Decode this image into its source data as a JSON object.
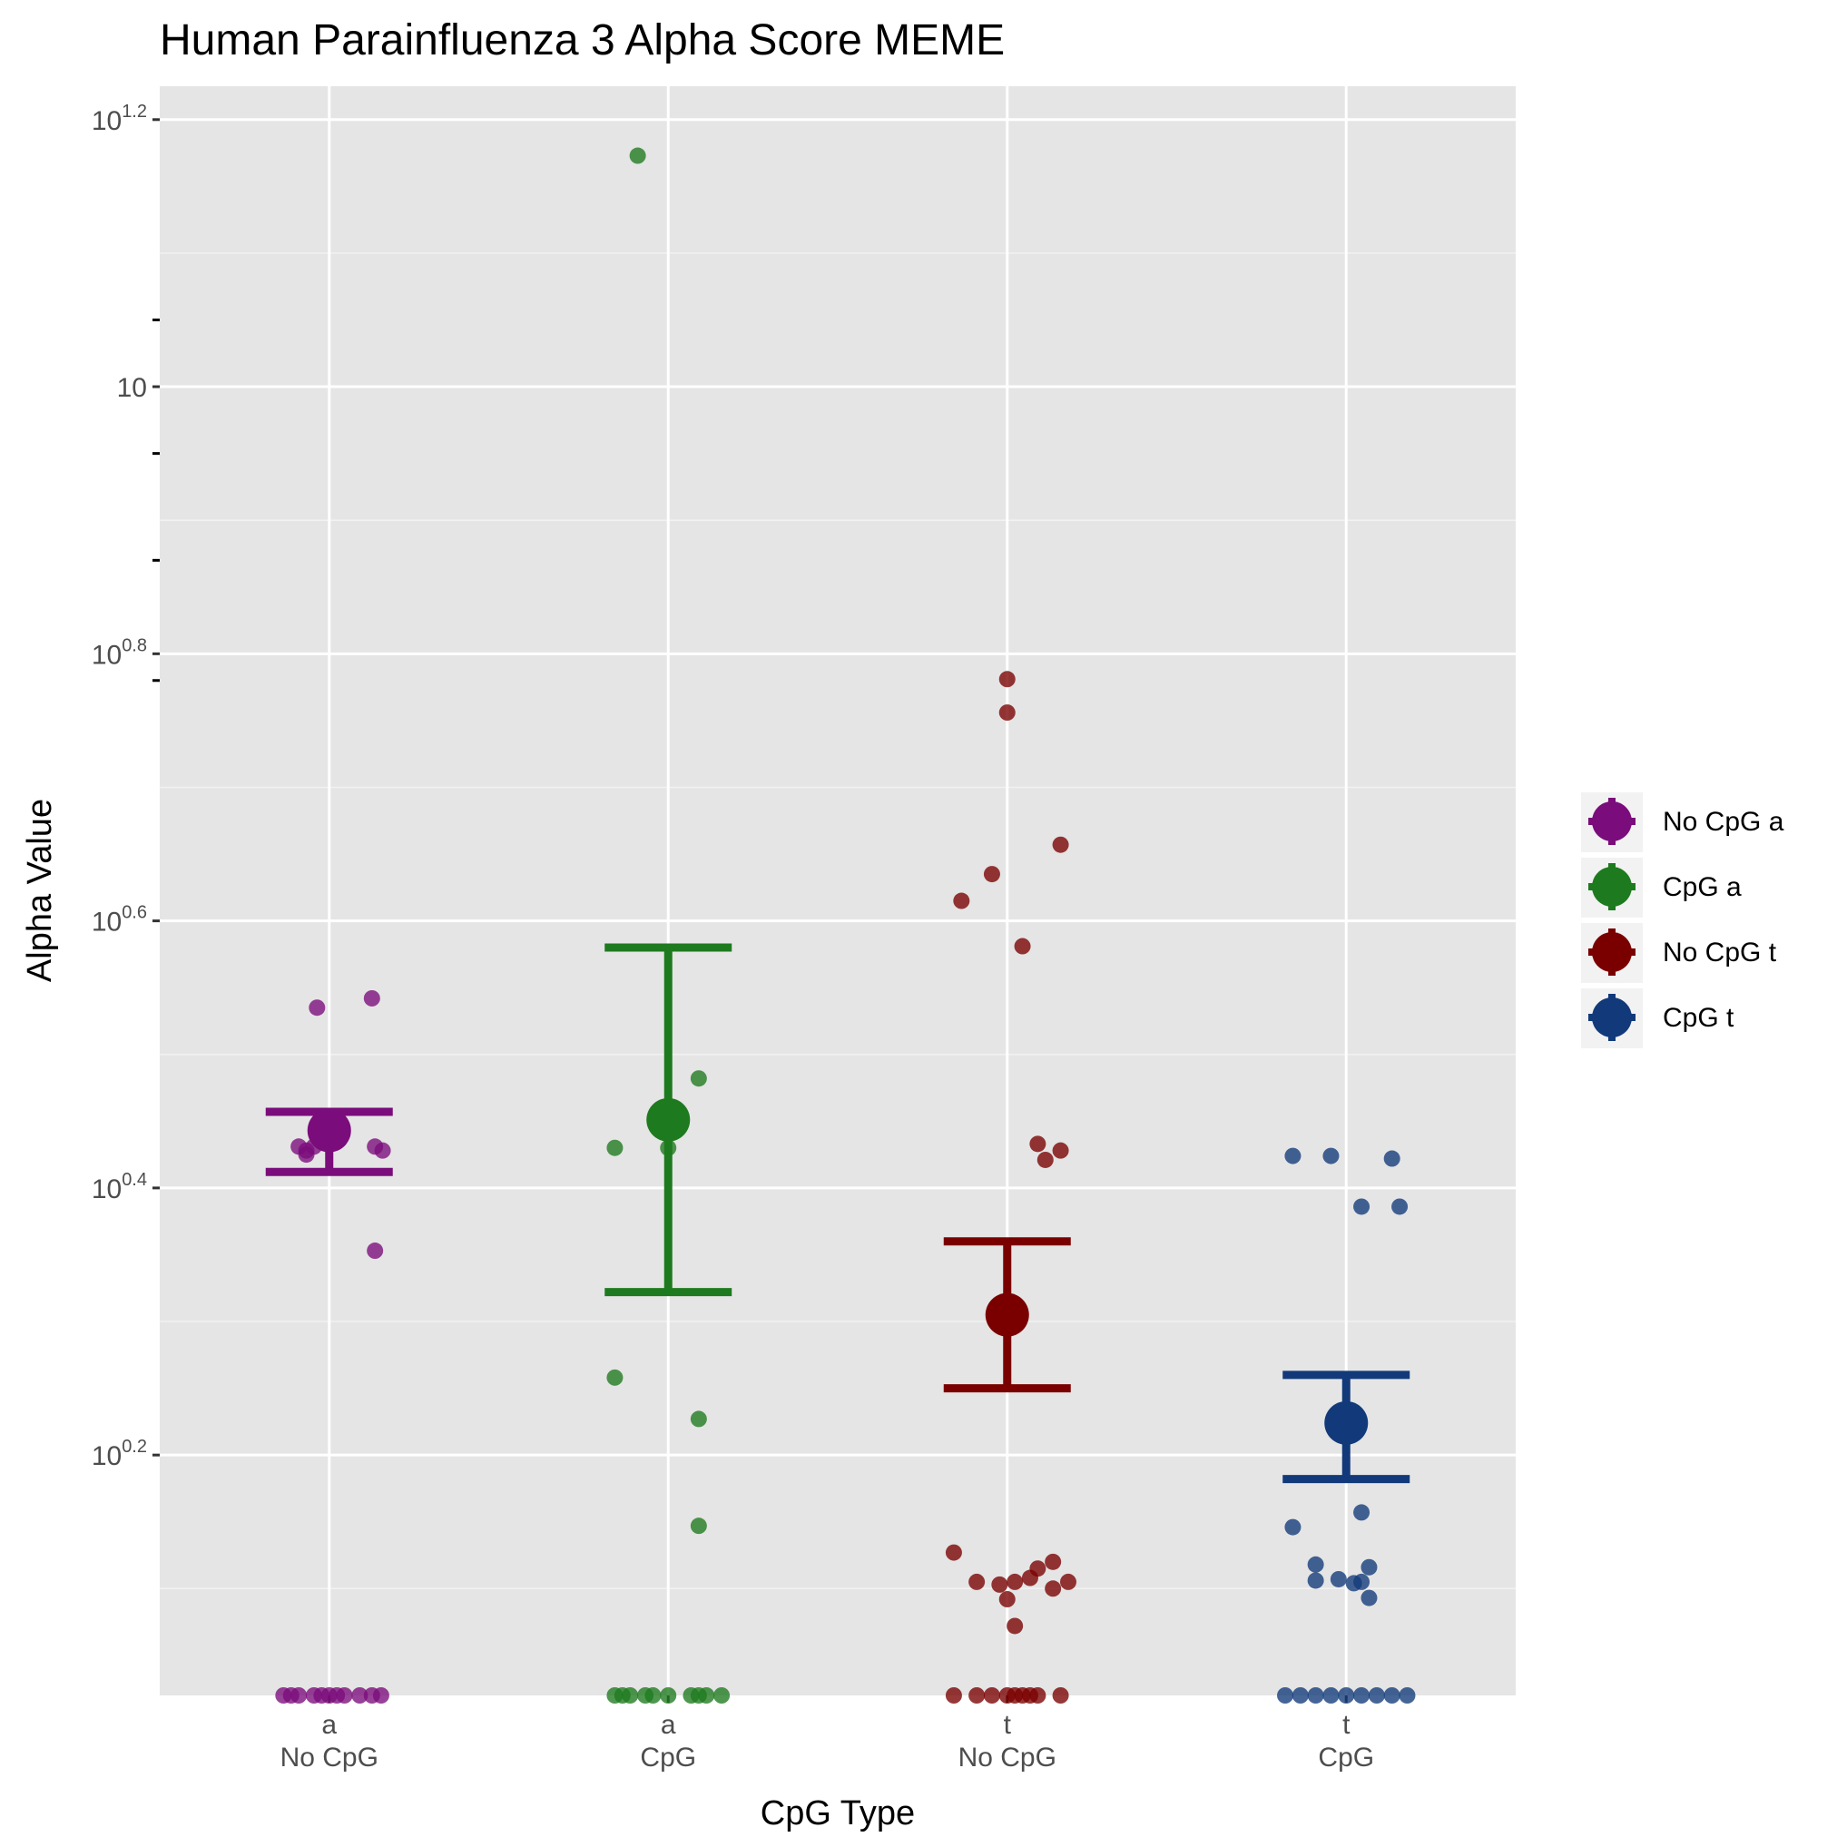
{
  "chart_data": {
    "type": "scatter",
    "title": "Human Parainfluenza 3 Alpha Score MEME",
    "xlabel": "CpG Type",
    "ylabel": "Alpha Value",
    "y_scale": "log10",
    "y_exponent_range": [
      0.02,
      1.225
    ],
    "y_ticks": [
      {
        "base": "10",
        "exp": "0.2",
        "value": 0.2
      },
      {
        "base": "10",
        "exp": "0.4",
        "value": 0.4
      },
      {
        "base": "10",
        "exp": "0.6",
        "value": 0.6
      },
      {
        "base": "10",
        "exp": "0.8",
        "value": 0.8
      },
      {
        "base": "10",
        "exp": "",
        "value": 1.0,
        "label": "10"
      },
      {
        "base": "10",
        "exp": "1.2",
        "value": 1.2
      }
    ],
    "categories": [
      {
        "top": "a",
        "bottom": "No CpG"
      },
      {
        "top": "a",
        "bottom": "CpG"
      },
      {
        "top": "t",
        "bottom": "No CpG"
      },
      {
        "top": "t",
        "bottom": "CpG"
      }
    ],
    "series": [
      {
        "name": "No CpG a",
        "color": "#7b0c7b",
        "category_index": 0,
        "mean_exp": 0.443,
        "err_low_exp": 0.412,
        "err_high_exp": 0.457,
        "points": [
          [
            -0.2,
            0.431
          ],
          [
            -0.15,
            0.428
          ],
          [
            -0.1,
            0.431
          ],
          [
            -0.15,
            0.425
          ],
          [
            0.3,
            0.431
          ],
          [
            0.35,
            0.428
          ],
          [
            -0.08,
            0.535
          ],
          [
            0.28,
            0.542
          ],
          [
            0.3,
            0.353
          ],
          [
            -0.3,
            0.02
          ],
          [
            -0.25,
            0.02
          ],
          [
            -0.2,
            0.02
          ],
          [
            -0.1,
            0.02
          ],
          [
            -0.05,
            0.02
          ],
          [
            0.0,
            0.02
          ],
          [
            0.05,
            0.02
          ],
          [
            0.1,
            0.02
          ],
          [
            0.2,
            0.02
          ],
          [
            0.28,
            0.02
          ],
          [
            0.34,
            0.02
          ]
        ]
      },
      {
        "name": "CpG a",
        "color": "#1e7a1e",
        "category_index": 1,
        "mean_exp": 0.451,
        "err_low_exp": 0.322,
        "err_high_exp": 0.58,
        "points": [
          [
            -0.2,
            1.173
          ],
          [
            0.2,
            0.482
          ],
          [
            -0.35,
            0.43
          ],
          [
            0.0,
            0.43
          ],
          [
            -0.35,
            0.258
          ],
          [
            0.2,
            0.227
          ],
          [
            0.2,
            0.147
          ],
          [
            -0.35,
            0.02
          ],
          [
            -0.3,
            0.02
          ],
          [
            -0.25,
            0.02
          ],
          [
            -0.15,
            0.02
          ],
          [
            -0.1,
            0.02
          ],
          [
            0.0,
            0.02
          ],
          [
            0.15,
            0.02
          ],
          [
            0.2,
            0.02
          ],
          [
            0.25,
            0.02
          ],
          [
            0.35,
            0.02
          ]
        ]
      },
      {
        "name": "No CpG t",
        "color": "#7a0000",
        "category_index": 2,
        "mean_exp": 0.305,
        "err_low_exp": 0.25,
        "err_high_exp": 0.36,
        "points": [
          [
            0.0,
            0.781
          ],
          [
            0.0,
            0.756
          ],
          [
            0.35,
            0.657
          ],
          [
            -0.1,
            0.635
          ],
          [
            -0.3,
            0.615
          ],
          [
            0.1,
            0.581
          ],
          [
            0.2,
            0.433
          ],
          [
            0.35,
            0.428
          ],
          [
            0.25,
            0.421
          ],
          [
            -0.35,
            0.127
          ],
          [
            -0.2,
            0.105
          ],
          [
            -0.05,
            0.103
          ],
          [
            0.05,
            0.105
          ],
          [
            0.2,
            0.115
          ],
          [
            0.3,
            0.12
          ],
          [
            0.4,
            0.105
          ],
          [
            0.15,
            0.108
          ],
          [
            0.0,
            0.092
          ],
          [
            0.05,
            0.072
          ],
          [
            0.3,
            0.1
          ],
          [
            -0.35,
            0.02
          ],
          [
            -0.2,
            0.02
          ],
          [
            -0.1,
            0.02
          ],
          [
            0.0,
            0.02
          ],
          [
            0.05,
            0.02
          ],
          [
            0.1,
            0.02
          ],
          [
            0.15,
            0.02
          ],
          [
            0.2,
            0.02
          ],
          [
            0.35,
            0.02
          ]
        ]
      },
      {
        "name": "CpG t",
        "color": "#123a7a",
        "category_index": 3,
        "mean_exp": 0.224,
        "err_low_exp": 0.182,
        "err_high_exp": 0.26,
        "points": [
          [
            -0.35,
            0.424
          ],
          [
            -0.1,
            0.424
          ],
          [
            0.3,
            0.422
          ],
          [
            0.1,
            0.386
          ],
          [
            0.35,
            0.386
          ],
          [
            -0.35,
            0.146
          ],
          [
            0.1,
            0.157
          ],
          [
            -0.2,
            0.118
          ],
          [
            -0.2,
            0.106
          ],
          [
            -0.05,
            0.107
          ],
          [
            0.1,
            0.105
          ],
          [
            0.05,
            0.104
          ],
          [
            0.15,
            0.116
          ],
          [
            0.15,
            0.093
          ],
          [
            -0.4,
            0.02
          ],
          [
            -0.3,
            0.02
          ],
          [
            -0.2,
            0.02
          ],
          [
            -0.1,
            0.02
          ],
          [
            0.0,
            0.02
          ],
          [
            0.1,
            0.02
          ],
          [
            0.2,
            0.02
          ],
          [
            0.3,
            0.02
          ],
          [
            0.4,
            0.02
          ]
        ]
      }
    ],
    "legend": {
      "position": "right",
      "entries": [
        "No CpG a",
        "CpG a",
        "No CpG t",
        "CpG t"
      ]
    },
    "grid": true
  }
}
